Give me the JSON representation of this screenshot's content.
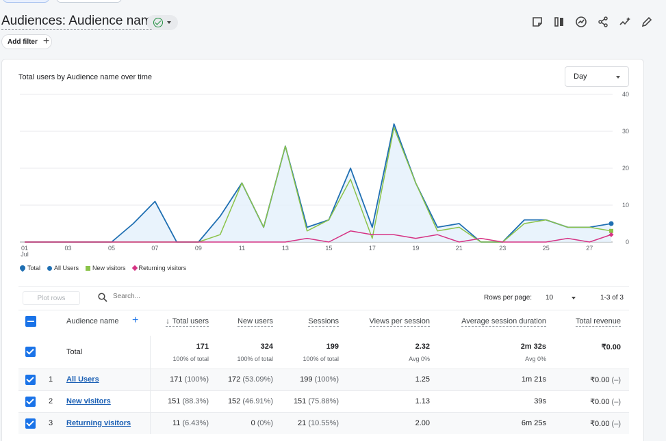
{
  "header": {
    "title": "Audiences: Audience name"
  },
  "add_filter_label": "Add filter",
  "chart": {
    "title": "Total users by Audience name over time",
    "granularity": "Day"
  },
  "chart_data": {
    "type": "line",
    "x": [
      "01",
      "02",
      "03",
      "04",
      "05",
      "06",
      "07",
      "08",
      "09",
      "10",
      "11",
      "12",
      "13",
      "14",
      "15",
      "16",
      "17",
      "18",
      "19",
      "20",
      "21",
      "22",
      "23",
      "24",
      "25",
      "26",
      "27",
      "28"
    ],
    "x_tick_labels": [
      "01",
      "03",
      "05",
      "07",
      "09",
      "11",
      "13",
      "15",
      "17",
      "19",
      "21",
      "23",
      "25",
      "27"
    ],
    "x_sub_label": "Jul",
    "y_ticks": [
      "0",
      "10",
      "20",
      "30",
      "40"
    ],
    "ylim": [
      0,
      40
    ],
    "series": [
      {
        "name": "Total",
        "color": "#1f6fb2",
        "values": [
          0,
          0,
          0,
          0,
          0,
          5,
          11,
          0,
          0,
          7,
          16,
          4,
          26,
          4,
          6,
          20,
          4,
          32,
          16,
          4,
          5,
          0,
          0,
          6,
          6,
          4,
          4,
          5
        ]
      },
      {
        "name": "All Users",
        "color": "#1f6fb2",
        "values": [
          0,
          0,
          0,
          0,
          0,
          5,
          11,
          0,
          0,
          7,
          16,
          4,
          26,
          4,
          6,
          20,
          4,
          32,
          16,
          4,
          5,
          0,
          0,
          6,
          6,
          4,
          4,
          5
        ]
      },
      {
        "name": "New visitors",
        "color": "#8bc34a",
        "values": [
          0,
          0,
          0,
          0,
          0,
          0,
          0,
          0,
          0,
          2,
          16,
          4,
          26,
          3,
          6,
          17,
          1,
          31,
          16,
          3,
          4,
          0,
          0,
          5,
          6,
          4,
          4,
          3
        ]
      },
      {
        "name": "Returning visitors",
        "color": "#d63384",
        "values": [
          0,
          0,
          0,
          0,
          0,
          0,
          0,
          0,
          0,
          0,
          0,
          0,
          0,
          1,
          0,
          3,
          2,
          2,
          1,
          2,
          0,
          1,
          0,
          0,
          0,
          1,
          0,
          2
        ]
      }
    ]
  },
  "table_controls": {
    "plot_rows": "Plot rows",
    "search_placeholder": "Search...",
    "rows_per_page_label": "Rows per page:",
    "rows_per_page": "10",
    "range": "1-3 of 3"
  },
  "table": {
    "headers": {
      "dimension": "Audience name",
      "total_users": "Total users",
      "new_users": "New users",
      "sessions": "Sessions",
      "views_per_session": "Views per session",
      "avg_session_duration": "Average session duration",
      "total_revenue": "Total revenue"
    },
    "total": {
      "label": "Total",
      "total_users": "171",
      "total_users_sub": "100% of total",
      "new_users": "324",
      "new_users_sub": "100% of total",
      "sessions": "199",
      "sessions_sub": "100% of total",
      "views_per_session": "2.32",
      "views_per_session_sub": "Avg 0%",
      "avg_session_duration": "2m 32s",
      "avg_session_duration_sub": "Avg 0%",
      "total_revenue": "₹0.00"
    },
    "rows": [
      {
        "index": "1",
        "name": "All Users",
        "total_users": "171",
        "total_users_pct": "(100%)",
        "new_users": "172",
        "new_users_pct": "(53.09%)",
        "sessions": "199",
        "sessions_pct": "(100%)",
        "views_per_session": "1.25",
        "avg_session_duration": "1m 21s",
        "total_revenue": "₹0.00",
        "total_revenue_pct": "(–)"
      },
      {
        "index": "2",
        "name": "New visitors",
        "total_users": "151",
        "total_users_pct": "(88.3%)",
        "new_users": "152",
        "new_users_pct": "(46.91%)",
        "sessions": "151",
        "sessions_pct": "(75.88%)",
        "views_per_session": "1.13",
        "avg_session_duration": "39s",
        "total_revenue": "₹0.00",
        "total_revenue_pct": "(–)"
      },
      {
        "index": "3",
        "name": "Returning visitors",
        "total_users": "11",
        "total_users_pct": "(6.43%)",
        "new_users": "0",
        "new_users_pct": "(0%)",
        "sessions": "21",
        "sessions_pct": "(10.55%)",
        "views_per_session": "2.00",
        "avg_session_duration": "6m 25s",
        "total_revenue": "₹0.00",
        "total_revenue_pct": "(–)"
      }
    ]
  }
}
